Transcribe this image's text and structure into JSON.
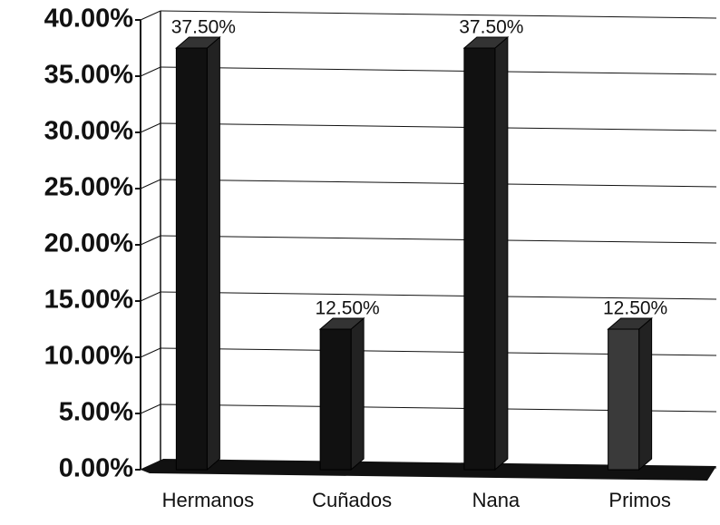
{
  "chart_data": {
    "type": "bar3d",
    "categories": [
      "Hermanos",
      "Cuñados",
      "Nana",
      "Primos"
    ],
    "values": [
      37.5,
      12.5,
      37.5,
      12.5
    ],
    "value_labels": [
      "37.50%",
      "12.50%",
      "37.50%",
      "12.50%"
    ],
    "colors": [
      "#111111",
      "#111111",
      "#111111",
      "#3a3a3a"
    ],
    "ylim": [
      0,
      40
    ],
    "yticks": [
      {
        "value": 0,
        "label": "0.00%"
      },
      {
        "value": 5,
        "label": "5.00%"
      },
      {
        "value": 10,
        "label": "10.00%"
      },
      {
        "value": 15,
        "label": "15.00%"
      },
      {
        "value": 20,
        "label": "20.00%"
      },
      {
        "value": 25,
        "label": "25.00%"
      },
      {
        "value": 30,
        "label": "30.00%"
      },
      {
        "value": 35,
        "label": "35.00%"
      },
      {
        "value": 40,
        "label": "40.00%"
      }
    ],
    "grid": true
  }
}
